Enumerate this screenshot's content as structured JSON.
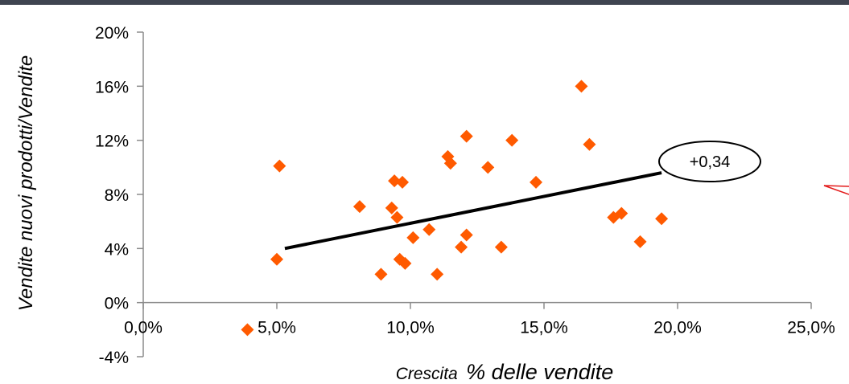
{
  "chart_data": {
    "type": "scatter",
    "xlabel_small": "Crescita",
    "xlabel_large": "% delle vendite",
    "ylabel": "Vendite nuovi prodotti/Vendite",
    "xlim": [
      0,
      25
    ],
    "ylim": [
      -4,
      20
    ],
    "x_ticks": [
      0,
      5,
      10,
      15,
      20,
      25
    ],
    "x_tick_labels": [
      "0,0%",
      "5,0%",
      "10,0%",
      "15,0%",
      "20,0%",
      "25,0%"
    ],
    "y_ticks": [
      -4,
      0,
      4,
      8,
      12,
      16,
      20
    ],
    "y_tick_labels": [
      "-4%",
      "0%",
      "4%",
      "8%",
      "12%",
      "16%",
      "20%"
    ],
    "marker_color": "#ff5a00",
    "points": [
      {
        "x": 3.9,
        "y": -2.0
      },
      {
        "x": 5.0,
        "y": 3.2
      },
      {
        "x": 5.1,
        "y": 10.1
      },
      {
        "x": 8.1,
        "y": 7.1
      },
      {
        "x": 8.9,
        "y": 2.1
      },
      {
        "x": 9.3,
        "y": 7.0
      },
      {
        "x": 9.4,
        "y": 9.0
      },
      {
        "x": 9.5,
        "y": 6.3
      },
      {
        "x": 9.6,
        "y": 3.2
      },
      {
        "x": 9.7,
        "y": 8.9
      },
      {
        "x": 9.8,
        "y": 2.9
      },
      {
        "x": 10.1,
        "y": 4.8
      },
      {
        "x": 10.7,
        "y": 5.4
      },
      {
        "x": 11.0,
        "y": 2.1
      },
      {
        "x": 11.4,
        "y": 10.8
      },
      {
        "x": 11.5,
        "y": 10.3
      },
      {
        "x": 11.9,
        "y": 4.1
      },
      {
        "x": 12.1,
        "y": 12.3
      },
      {
        "x": 12.1,
        "y": 5.0
      },
      {
        "x": 12.9,
        "y": 10.0
      },
      {
        "x": 13.4,
        "y": 4.1
      },
      {
        "x": 13.8,
        "y": 12.0
      },
      {
        "x": 14.7,
        "y": 8.9
      },
      {
        "x": 16.4,
        "y": 16.0
      },
      {
        "x": 16.7,
        "y": 11.7
      },
      {
        "x": 17.6,
        "y": 6.3
      },
      {
        "x": 17.9,
        "y": 6.6
      },
      {
        "x": 18.6,
        "y": 4.5
      },
      {
        "x": 19.4,
        "y": 6.2
      }
    ],
    "trendline": {
      "x": [
        5.3,
        19.4
      ],
      "y": [
        4.0,
        9.6
      ]
    },
    "annotation": "+0,34"
  }
}
